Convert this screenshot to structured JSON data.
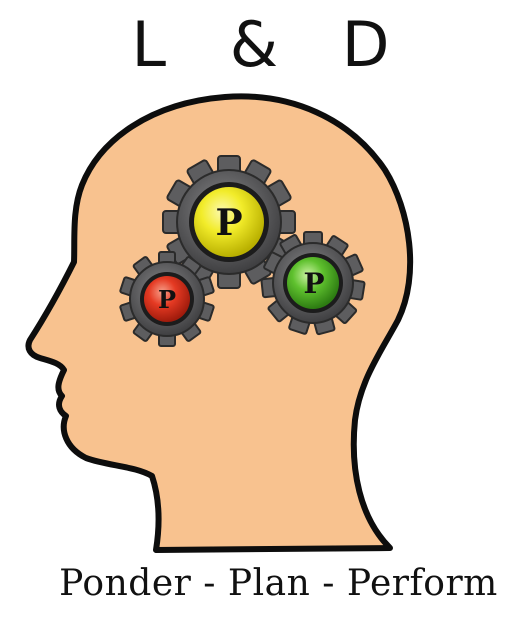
{
  "logo": {
    "title": "L & D",
    "tagline": "Ponder - Plan - Perform"
  },
  "gears": [
    {
      "letter": "P",
      "color": "#f2ec2a",
      "icon": "gear-icon"
    },
    {
      "letter": "P",
      "color": "#e53a23",
      "icon": "gear-icon"
    },
    {
      "letter": "P",
      "color": "#5fc12e",
      "icon": "gear-icon"
    }
  ],
  "colors": {
    "head_fill": "#f8c28f",
    "head_outline": "#0d0d0d",
    "gear_body": "#5d5d5f"
  }
}
